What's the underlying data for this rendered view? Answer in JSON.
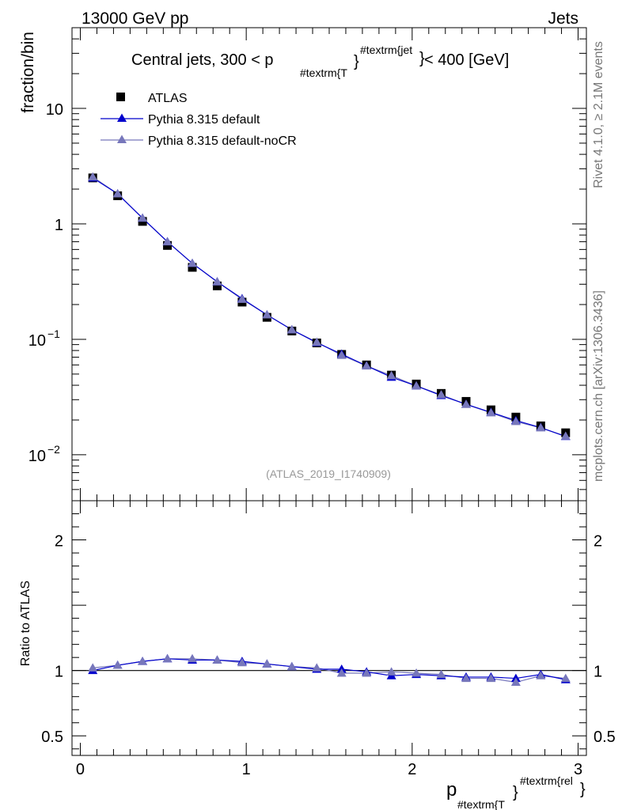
{
  "header": {
    "left": "13000 GeV pp",
    "right": "Jets"
  },
  "side_labels": {
    "rivet": "Rivet 4.1.0, ≥ 2.1M events",
    "mcplots": "mcplots.cern.ch [arXiv:1306.3436]"
  },
  "colors": {
    "atlas": "#000000",
    "default": "#0000cc",
    "noCR": "#7777bb",
    "frame": "#000000",
    "watermark": "#999999"
  },
  "chart_data": [
    {
      "type": "scatter",
      "panel": "main",
      "title_parts": {
        "prefix": "Central jets, 300 < p",
        "sub": "#textrm{T",
        "brace": "}",
        "sup": "#textrm{jet",
        "brace2": "}",
        "suffix": " < 400 [GeV]"
      },
      "ylabel": "fraction/bin",
      "yscale": "log",
      "ylim": [
        0.004,
        50
      ],
      "xlim": [
        -0.05,
        3.05
      ],
      "y_ticks": [
        {
          "value": 10,
          "label": "10"
        },
        {
          "value": 1,
          "label": "1"
        },
        {
          "value": 0.1,
          "label": "10",
          "exp": "−1"
        },
        {
          "value": 0.01,
          "label": "10",
          "exp": "−2"
        }
      ],
      "watermark": "(ATLAS_2019_I1740909)",
      "legend_position": "top-left",
      "x": [
        0.075,
        0.225,
        0.375,
        0.525,
        0.675,
        0.825,
        0.975,
        1.125,
        1.275,
        1.425,
        1.575,
        1.725,
        1.875,
        2.025,
        2.175,
        2.325,
        2.475,
        2.625,
        2.775,
        2.925
      ],
      "series": [
        {
          "name": "ATLAS",
          "marker": "square",
          "values": [
            2.5,
            1.75,
            1.05,
            0.65,
            0.42,
            0.29,
            0.21,
            0.155,
            0.118,
            0.093,
            0.074,
            0.06,
            0.049,
            0.041,
            0.034,
            0.029,
            0.0245,
            0.0212,
            0.0178,
            0.0155
          ]
        },
        {
          "name": "Pythia 8.315 default",
          "marker": "triangle",
          "values": [
            2.5,
            1.82,
            1.12,
            0.7,
            0.455,
            0.315,
            0.225,
            0.163,
            0.121,
            0.0935,
            0.0745,
            0.059,
            0.047,
            0.0395,
            0.0326,
            0.0274,
            0.0233,
            0.0198,
            0.0172,
            0.0144
          ]
        },
        {
          "name": "Pythia 8.315 default-noCR",
          "marker": "triangle",
          "values": [
            2.55,
            1.82,
            1.12,
            0.7,
            0.455,
            0.315,
            0.222,
            0.163,
            0.121,
            0.0945,
            0.0728,
            0.0588,
            0.0485,
            0.0395,
            0.0331,
            0.0273,
            0.0231,
            0.0194,
            0.0171,
            0.0145
          ]
        }
      ]
    },
    {
      "type": "line",
      "panel": "ratio",
      "ylabel": "Ratio to ATLAS",
      "ylim": [
        0.35,
        2.3
      ],
      "xlim": [
        -0.05,
        3.05
      ],
      "y_ticks": [
        {
          "value": 2,
          "label": "2"
        },
        {
          "value": 1,
          "label": "1"
        },
        {
          "value": 0.5,
          "label": "0.5"
        }
      ],
      "x_ticks": [
        {
          "value": 0,
          "label": "0"
        },
        {
          "value": 1,
          "label": "1"
        },
        {
          "value": 2,
          "label": "2"
        },
        {
          "value": 3,
          "label": "3"
        }
      ],
      "xlabel_parts": {
        "main": "p",
        "sub": "#textrm{T",
        "brace": "}",
        "sup": "#textrm{rel",
        "brace2": "}"
      },
      "reference": 1,
      "x": [
        0.075,
        0.225,
        0.375,
        0.525,
        0.675,
        0.825,
        0.975,
        1.125,
        1.275,
        1.425,
        1.575,
        1.725,
        1.875,
        2.025,
        2.175,
        2.325,
        2.475,
        2.625,
        2.775,
        2.925
      ],
      "series": [
        {
          "name": "Pythia 8.315 default",
          "values": [
            1.0,
            1.04,
            1.07,
            1.09,
            1.08,
            1.08,
            1.07,
            1.05,
            1.03,
            1.01,
            1.01,
            0.99,
            0.96,
            0.97,
            0.96,
            0.95,
            0.95,
            0.94,
            0.97,
            0.93
          ]
        },
        {
          "name": "Pythia 8.315 default-noCR",
          "values": [
            1.02,
            1.04,
            1.07,
            1.09,
            1.09,
            1.08,
            1.06,
            1.05,
            1.03,
            1.02,
            0.98,
            0.98,
            0.99,
            0.98,
            0.97,
            0.94,
            0.94,
            0.91,
            0.96,
            0.94
          ]
        }
      ]
    }
  ]
}
